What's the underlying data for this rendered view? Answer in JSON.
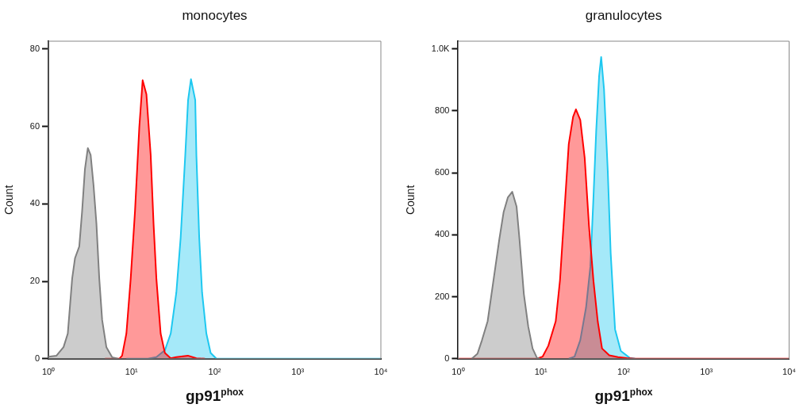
{
  "chart_data": [
    {
      "type": "area",
      "title": "monocytes",
      "xlabel": "gp91$^{phox}$",
      "ylabel": "Count",
      "log": "x",
      "xlim": [
        1,
        10000
      ],
      "xticks": [
        {
          "value": 1,
          "label": "10⁰"
        },
        {
          "value": 10,
          "label": "10¹"
        },
        {
          "value": 100,
          "label": "10²"
        },
        {
          "value": 1000,
          "label": "10³"
        },
        {
          "value": 10000,
          "label": "10⁴"
        }
      ],
      "ylim": [
        0,
        82
      ],
      "yticks": [
        0,
        20,
        40,
        60,
        80
      ],
      "series": [
        {
          "color": "#808080",
          "x": [
            1.0,
            1.25,
            1.52,
            1.71,
            1.93,
            2.09,
            2.35,
            2.54,
            2.75,
            2.98,
            3.22,
            3.49,
            3.78,
            4.09,
            4.43,
            4.98,
            5.83,
            6.84
          ],
          "values": [
            0.5,
            0.8,
            3,
            6.5,
            20.7,
            26,
            29,
            38,
            49,
            54.4,
            52.6,
            44.8,
            34.9,
            20.7,
            10,
            3,
            0.4,
            0
          ]
        },
        {
          "color": "#ff0000",
          "x": [
            4.79,
            7.12,
            7.7,
            8.67,
            9.77,
            11.0,
            12.4,
            13.6,
            15.1,
            17.0,
            18.4,
            19.9,
            22.4,
            25.2,
            29.6,
            34.6,
            47.6,
            60.3,
            76.4
          ],
          "values": [
            0,
            0,
            0.8,
            6.5,
            20.7,
            38,
            59.8,
            71.9,
            68.3,
            52.6,
            34.9,
            20.7,
            6.5,
            1.5,
            0.1,
            0.4,
            0.8,
            0.1,
            0
          ]
        },
        {
          "color": "#1ec8f0",
          "x": [
            8.67,
            15.7,
            19.9,
            25.2,
            29.6,
            34.6,
            39.0,
            44.3,
            47.9,
            51.9,
            58.4,
            60.3,
            65.2,
            70.6,
            79.5,
            89.5,
            105,
            10000
          ],
          "values": [
            0,
            0,
            0.4,
            2.2,
            6.5,
            17.1,
            31.3,
            52.6,
            66.8,
            72.2,
            66.8,
            52.6,
            31.3,
            17.1,
            6.5,
            1.5,
            0,
            0
          ]
        }
      ]
    },
    {
      "type": "area",
      "title": "granulocytes",
      "xlabel": "gp91$^{phox}$",
      "ylabel": "Count",
      "log": "x",
      "xlim": [
        1,
        10000
      ],
      "xticks": [
        {
          "value": 1,
          "label": "10⁰"
        },
        {
          "value": 10,
          "label": "10¹"
        },
        {
          "value": 100,
          "label": "10²"
        },
        {
          "value": 1000,
          "label": "10³"
        },
        {
          "value": 10000,
          "label": "10⁴"
        }
      ],
      "ylim": [
        0,
        1025
      ],
      "yticks": [
        0,
        200,
        400,
        600,
        800,
        {
          "value": 1000,
          "label": "1.0K"
        }
      ],
      "series": [
        {
          "color": "#808080",
          "x": [
            1.46,
            1.71,
            1.94,
            2.27,
            2.67,
            3.14,
            3.54,
            3.99,
            4.5,
            5.08,
            5.51,
            6.22,
            7.03,
            7.93,
            8.95,
            9.69
          ],
          "values": [
            0,
            16,
            60,
            121,
            253,
            385,
            473,
            521,
            539,
            491,
            385,
            209,
            104,
            33,
            3,
            0
          ]
        },
        {
          "color": "#ff0000",
          "x": [
            1,
            8.95,
            10.5,
            12.3,
            15.1,
            17.0,
            19.2,
            21.7,
            24.5,
            26.5,
            29.9,
            33.8,
            38.1,
            43.1,
            48.6,
            54.8,
            67,
            85.3,
            109,
            138,
            10000
          ],
          "values": [
            0,
            0,
            7,
            42,
            121,
            253,
            473,
            693,
            781,
            805,
            771,
            649,
            429,
            253,
            121,
            33,
            11,
            5,
            2,
            0,
            0
          ]
        },
        {
          "color": "#1ec8f0",
          "x": [
            21.7,
            25.5,
            29.9,
            35.1,
            39.6,
            43.1,
            46.6,
            50.5,
            53.5,
            57.9,
            64.3,
            69.7,
            78.7,
            92.4,
            118,
            138
          ],
          "values": [
            0,
            7,
            60,
            165,
            297,
            517,
            737,
            912,
            974,
            870,
            605,
            341,
            95,
            25,
            3,
            0
          ]
        }
      ]
    }
  ]
}
